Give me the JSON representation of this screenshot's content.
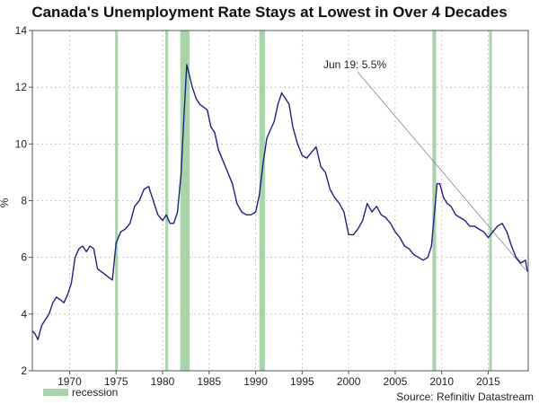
{
  "chart_data": {
    "type": "line",
    "title": "Canada's Unemployment Rate Stays at Lowest in Over 4 Decades",
    "ylabel": "%",
    "xlabel": "",
    "xlim": [
      1966,
      2019.3
    ],
    "ylim": [
      2,
      14
    ],
    "xticks": [
      1970,
      1975,
      1980,
      1985,
      1990,
      1995,
      2000,
      2005,
      2010,
      2015
    ],
    "yticks": [
      2,
      4,
      6,
      8,
      10,
      12,
      14
    ],
    "grid": true,
    "series": [
      {
        "name": "Unemployment rate",
        "color": "#1f1f8c",
        "x": [
          1966.0,
          1966.3,
          1966.6,
          1967.0,
          1967.4,
          1967.8,
          1968.2,
          1968.6,
          1969.0,
          1969.4,
          1969.8,
          1970.2,
          1970.6,
          1971.0,
          1971.4,
          1971.8,
          1972.2,
          1972.6,
          1973.0,
          1973.4,
          1973.8,
          1974.2,
          1974.6,
          1975.0,
          1975.5,
          1976.0,
          1976.5,
          1977.0,
          1977.5,
          1978.0,
          1978.5,
          1979.0,
          1979.5,
          1980.0,
          1980.4,
          1980.8,
          1981.2,
          1981.6,
          1982.0,
          1982.3,
          1982.6,
          1982.9,
          1983.2,
          1983.6,
          1984.0,
          1984.4,
          1984.8,
          1985.2,
          1985.6,
          1986.0,
          1986.5,
          1987.0,
          1987.5,
          1988.0,
          1988.5,
          1989.0,
          1989.5,
          1990.0,
          1990.4,
          1990.8,
          1991.2,
          1991.6,
          1992.0,
          1992.4,
          1992.8,
          1993.2,
          1993.6,
          1994.0,
          1994.5,
          1995.0,
          1995.5,
          1996.0,
          1996.5,
          1997.0,
          1997.5,
          1998.0,
          1998.5,
          1999.0,
          1999.5,
          2000.0,
          2000.5,
          2001.0,
          2001.5,
          2002.0,
          2002.5,
          2003.0,
          2003.5,
          2004.0,
          2004.5,
          2005.0,
          2005.5,
          2006.0,
          2006.5,
          2007.0,
          2007.5,
          2008.0,
          2008.5,
          2008.9,
          2009.2,
          2009.5,
          2009.8,
          2010.2,
          2010.6,
          2011.0,
          2011.5,
          2012.0,
          2012.5,
          2013.0,
          2013.5,
          2014.0,
          2014.5,
          2015.0,
          2015.5,
          2016.0,
          2016.5,
          2017.0,
          2017.5,
          2018.0,
          2018.5,
          2019.0,
          2019.2
        ],
        "values": [
          3.4,
          3.3,
          3.1,
          3.6,
          3.8,
          4.0,
          4.4,
          4.6,
          4.5,
          4.4,
          4.7,
          5.1,
          6.0,
          6.3,
          6.4,
          6.2,
          6.4,
          6.3,
          5.6,
          5.5,
          5.4,
          5.3,
          5.2,
          6.5,
          6.9,
          7.0,
          7.2,
          7.8,
          8.0,
          8.4,
          8.5,
          8.0,
          7.5,
          7.3,
          7.5,
          7.2,
          7.2,
          7.6,
          9.0,
          11.0,
          12.8,
          12.4,
          12.0,
          11.6,
          11.4,
          11.3,
          11.2,
          10.6,
          10.4,
          9.8,
          9.4,
          9.0,
          8.6,
          7.9,
          7.6,
          7.5,
          7.5,
          7.6,
          8.2,
          9.3,
          10.2,
          10.5,
          10.8,
          11.4,
          11.8,
          11.6,
          11.4,
          10.6,
          10.0,
          9.6,
          9.5,
          9.7,
          9.9,
          9.2,
          9.0,
          8.4,
          8.1,
          7.9,
          7.6,
          6.8,
          6.8,
          7.0,
          7.3,
          7.9,
          7.6,
          7.8,
          7.5,
          7.4,
          7.2,
          6.9,
          6.7,
          6.4,
          6.3,
          6.1,
          6.0,
          5.9,
          6.0,
          6.4,
          7.5,
          8.6,
          8.6,
          8.1,
          7.9,
          7.8,
          7.5,
          7.4,
          7.3,
          7.1,
          7.1,
          7.0,
          6.9,
          6.7,
          6.9,
          7.1,
          7.2,
          6.9,
          6.4,
          6.0,
          5.8,
          5.9,
          5.5
        ],
        "recessions": [
          [
            1974.9,
            1975.2
          ],
          [
            1980.3,
            1980.6
          ],
          [
            1981.9,
            1982.9
          ],
          [
            1990.4,
            1991.0
          ],
          [
            2009.0,
            2009.4
          ],
          [
            2015.1,
            2015.4
          ]
        ]
      }
    ],
    "annotation": {
      "text": "Jun 19: 5.5%",
      "x": 2019.2,
      "y": 5.5
    },
    "legend": {
      "label": "recession",
      "color": "#a6d5a6",
      "placement": "bottom-left"
    },
    "source": "Source: Refinitiv Datastream"
  }
}
